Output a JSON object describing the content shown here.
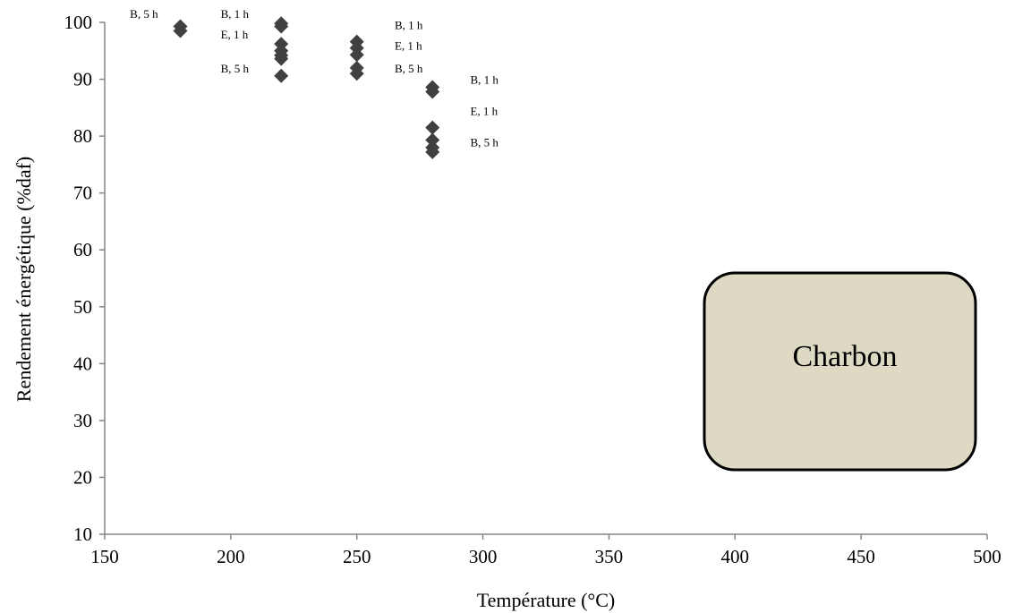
{
  "chart_data": {
    "type": "scatter",
    "title": "",
    "xlabel": "Température (°C)",
    "ylabel": "Rendement énergétique (%daf)",
    "xlim": [
      150,
      500
    ],
    "ylim": [
      10,
      100
    ],
    "xticks": [
      150,
      200,
      250,
      300,
      350,
      400,
      450,
      500
    ],
    "yticks": [
      10,
      20,
      30,
      40,
      50,
      60,
      70,
      80,
      90,
      100
    ],
    "grid": false,
    "legend": "none",
    "marker_color": "#404040",
    "series": [
      {
        "points": [
          {
            "x": 180,
            "y": 99.3
          },
          {
            "x": 180,
            "y": 98.5
          },
          {
            "x": 220,
            "y": 99.8
          },
          {
            "x": 220,
            "y": 99.3
          },
          {
            "x": 220,
            "y": 96.2
          },
          {
            "x": 220,
            "y": 95.0
          },
          {
            "x": 220,
            "y": 94.2
          },
          {
            "x": 220,
            "y": 93.6
          },
          {
            "x": 220,
            "y": 90.6
          },
          {
            "x": 250,
            "y": 96.6
          },
          {
            "x": 250,
            "y": 95.5
          },
          {
            "x": 250,
            "y": 94.3
          },
          {
            "x": 250,
            "y": 92.0
          },
          {
            "x": 250,
            "y": 91.0
          },
          {
            "x": 280,
            "y": 88.6
          },
          {
            "x": 280,
            "y": 87.8
          },
          {
            "x": 280,
            "y": 81.5
          },
          {
            "x": 280,
            "y": 79.3
          },
          {
            "x": 280,
            "y": 78.0
          },
          {
            "x": 280,
            "y": 77.2
          }
        ]
      }
    ],
    "annotations": [
      {
        "text": "B, 5 h",
        "x": 160,
        "y": 100.8
      },
      {
        "text": "B, 1 h",
        "x": 196,
        "y": 100.8
      },
      {
        "text": "E, 1 h",
        "x": 196,
        "y": 97.2
      },
      {
        "text": "B, 5 h",
        "x": 196,
        "y": 91.2
      },
      {
        "text": "B, 1 h",
        "x": 265,
        "y": 98.8
      },
      {
        "text": "E, 1 h",
        "x": 265,
        "y": 95.2
      },
      {
        "text": "B, 5 h",
        "x": 265,
        "y": 91.2
      },
      {
        "text": "B, 1 h",
        "x": 295,
        "y": 89.2
      },
      {
        "text": "E, 1 h",
        "x": 295,
        "y": 83.7
      },
      {
        "text": "B, 5 h",
        "x": 295,
        "y": 78.2
      }
    ],
    "label_box": {
      "text": "Charbon",
      "fill": "#ddd9c3",
      "stroke": "#000000"
    }
  }
}
